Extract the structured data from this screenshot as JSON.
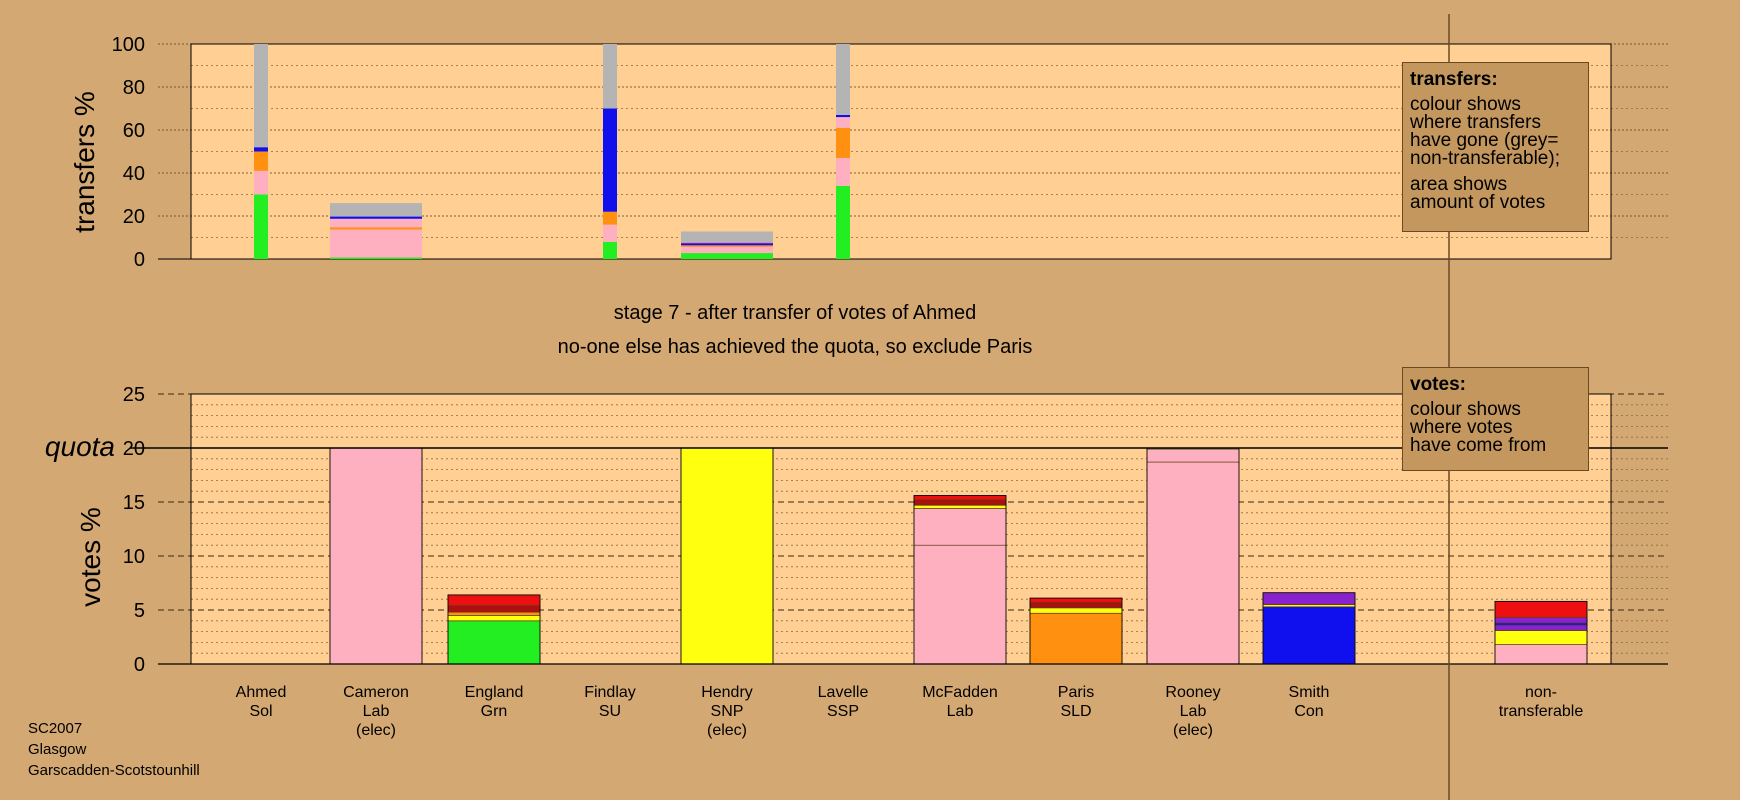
{
  "chart_data": [
    {
      "type": "bar",
      "subtype": "stacked-transfers",
      "ylabel": "transfers %",
      "ylim": [
        0,
        100
      ],
      "yticks": [
        0,
        20,
        40,
        60,
        80,
        100
      ],
      "colors": {
        "green": "#22ee22",
        "pink": "#ffb0c0",
        "orange": "#ff9010",
        "blue": "#1010ee",
        "purple": "#8822cc",
        "yellow": "#ffff10",
        "red": "#ee1010",
        "darkred": "#aa1010",
        "grey": "#b4b4b4"
      },
      "bars": [
        {
          "candidate": "Ahmed",
          "width": "narrow",
          "segments": [
            {
              "color": "green",
              "value": 30
            },
            {
              "color": "pink",
              "value": 11
            },
            {
              "color": "orange",
              "value": 9
            },
            {
              "color": "blue",
              "value": 2
            },
            {
              "color": "grey",
              "value": 48
            }
          ]
        },
        {
          "candidate": "Cameron",
          "width": "wide",
          "segments": [
            {
              "color": "green",
              "value": 1
            },
            {
              "color": "pink",
              "value": 13
            },
            {
              "color": "orange",
              "value": 1
            },
            {
              "color": "pink",
              "value": 4
            },
            {
              "color": "blue",
              "value": 1
            },
            {
              "color": "grey",
              "value": 6
            }
          ]
        },
        {
          "candidate": "Findlay",
          "width": "narrow",
          "segments": [
            {
              "color": "green",
              "value": 8
            },
            {
              "color": "pink",
              "value": 8
            },
            {
              "color": "orange",
              "value": 6
            },
            {
              "color": "blue",
              "value": 48
            },
            {
              "color": "grey",
              "value": 30
            }
          ]
        },
        {
          "candidate": "Hendry",
          "width": "wide",
          "segments": [
            {
              "color": "green",
              "value": 3
            },
            {
              "color": "pink",
              "value": 3
            },
            {
              "color": "orange",
              "value": 0.7
            },
            {
              "color": "blue",
              "value": 0.6
            },
            {
              "color": "purple",
              "value": 0.5
            },
            {
              "color": "grey",
              "value": 5
            }
          ]
        },
        {
          "candidate": "Lavelle",
          "width": "narrow",
          "segments": [
            {
              "color": "green",
              "value": 34
            },
            {
              "color": "pink",
              "value": 13
            },
            {
              "color": "orange",
              "value": 14
            },
            {
              "color": "pink",
              "value": 5
            },
            {
              "color": "blue",
              "value": 1
            },
            {
              "color": "grey",
              "value": 33
            }
          ]
        }
      ],
      "legend": {
        "title": "transfers:",
        "lines_a": [
          "colour shows",
          "where transfers",
          "have gone (grey=",
          "non-transferable);"
        ],
        "lines_b": [
          "area shows",
          "amount of votes"
        ]
      }
    },
    {
      "type": "bar",
      "subtype": "stacked-votes",
      "ylabel": "votes %",
      "ylim": [
        0,
        25
      ],
      "yticks": [
        0,
        5,
        10,
        15,
        20,
        25
      ],
      "quota_label": "quota",
      "quota": 20,
      "categories": [
        [
          "Ahmed",
          "Sol",
          ""
        ],
        [
          "Cameron",
          "Lab",
          "(elec)"
        ],
        [
          "England",
          "Grn",
          ""
        ],
        [
          "Findlay",
          "SU",
          ""
        ],
        [
          "Hendry",
          "SNP",
          "(elec)"
        ],
        [
          "Lavelle",
          "SSP",
          ""
        ],
        [
          "McFadden",
          "Lab",
          ""
        ],
        [
          "Paris",
          "SLD",
          ""
        ],
        [
          "Rooney",
          "Lab",
          "(elec)"
        ],
        [
          "Smith",
          "Con",
          ""
        ],
        [
          "non-",
          "transferable",
          ""
        ]
      ],
      "bars": [
        {
          "candidate": "Ahmed",
          "segments": []
        },
        {
          "candidate": "Cameron",
          "segments": [
            {
              "color": "pink",
              "value": 20
            }
          ]
        },
        {
          "candidate": "England",
          "segments": [
            {
              "color": "green",
              "value": 4.0
            },
            {
              "color": "yellow",
              "value": 0.5
            },
            {
              "color": "orange",
              "value": 0.3
            },
            {
              "color": "darkred",
              "value": 0.6
            },
            {
              "color": "red",
              "value": 1.0
            }
          ]
        },
        {
          "candidate": "Findlay",
          "segments": []
        },
        {
          "candidate": "Hendry",
          "segments": [
            {
              "color": "yellow",
              "value": 20
            }
          ]
        },
        {
          "candidate": "Lavelle",
          "segments": []
        },
        {
          "candidate": "McFadden",
          "segments": [
            {
              "color": "pink",
              "value": 11
            },
            {
              "color": "pink",
              "value": 3.4
            },
            {
              "color": "yellow",
              "value": 0.3
            },
            {
              "color": "darkred",
              "value": 0.5
            },
            {
              "color": "red",
              "value": 0.4
            }
          ]
        },
        {
          "candidate": "Paris",
          "segments": [
            {
              "color": "orange",
              "value": 4.7
            },
            {
              "color": "yellow",
              "value": 0.5
            },
            {
              "color": "darkred",
              "value": 0.5
            },
            {
              "color": "red",
              "value": 0.4
            }
          ]
        },
        {
          "candidate": "Rooney",
          "segments": [
            {
              "color": "pink",
              "value": 18.7
            },
            {
              "color": "pink",
              "value": 1.2
            },
            {
              "color": "green",
              "value": 0.1
            }
          ]
        },
        {
          "candidate": "Smith",
          "segments": [
            {
              "color": "blue",
              "value": 5.3
            },
            {
              "color": "yellow",
              "value": 0.2
            },
            {
              "color": "purple",
              "value": 1.1
            }
          ]
        },
        {
          "candidate": "non-transferable",
          "segments": [
            {
              "color": "pink",
              "value": 1.8
            },
            {
              "color": "yellow",
              "value": 1.3
            },
            {
              "color": "purple",
              "value": 0.5
            },
            {
              "color": "blue",
              "value": 0.2
            },
            {
              "color": "purple",
              "value": 0.5
            },
            {
              "color": "red",
              "value": 1.5
            }
          ]
        }
      ],
      "legend": {
        "title": "votes:",
        "lines": [
          "colour shows",
          "where votes",
          "have come from"
        ]
      }
    }
  ],
  "stage": {
    "line1": "stage 7 - after transfer of votes of Ahmed",
    "line2": "no-one else has achieved the quota, so exclude Paris"
  },
  "footer": {
    "line1": "SC2007",
    "line2": "Glasgow",
    "line3": "Garscadden-Scotstounhill"
  }
}
